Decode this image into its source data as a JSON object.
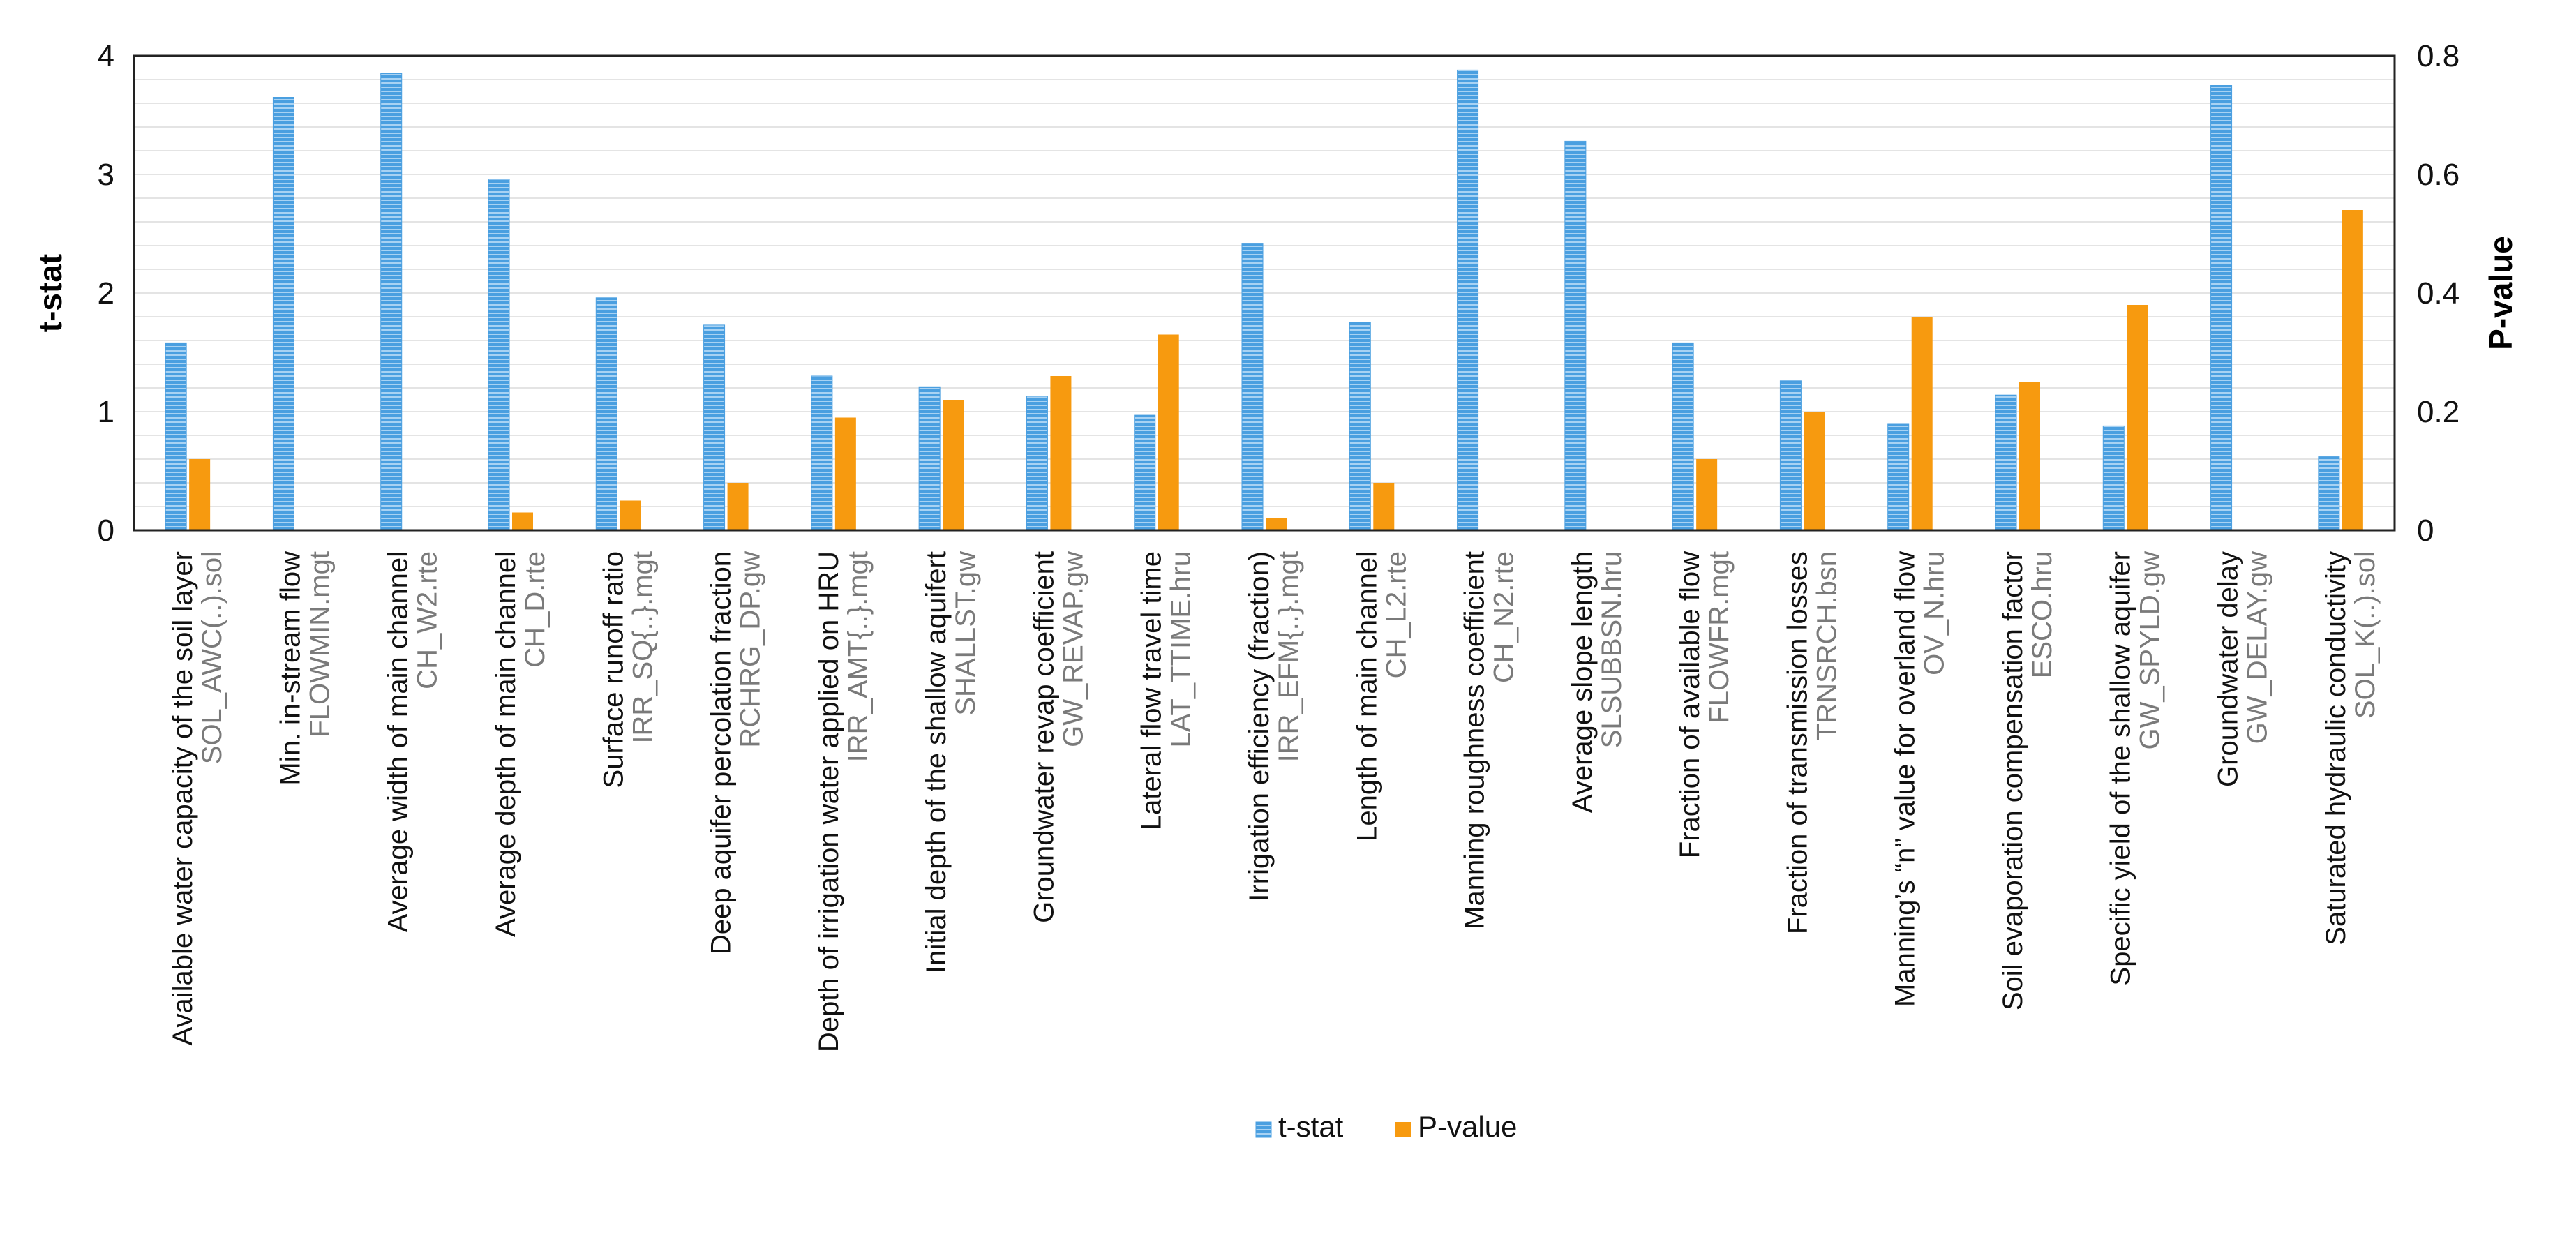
{
  "chart_data": {
    "type": "bar",
    "title": "",
    "xlabel": "",
    "ylabel": "t-stat",
    "y2label": "P-value",
    "ylim": [
      0,
      4
    ],
    "y2lim": [
      0,
      0.8
    ],
    "yticks": [
      "0",
      "1",
      "2",
      "3",
      "4"
    ],
    "y2ticks": [
      "0",
      "0.2",
      "0.4",
      "0.6",
      "0.8"
    ],
    "grid": true,
    "legend_position": "bottom-center",
    "categories": [
      {
        "name": "Available water capacity of the soil layer",
        "code": "SOL_AWC(..).sol"
      },
      {
        "name": "Min. in-stream flow",
        "code": "FLOWMIN.mgt"
      },
      {
        "name": "Average width of main channel",
        "code": "CH_W2.rte"
      },
      {
        "name": "Average depth of main channel",
        "code": "CH_D.rte"
      },
      {
        "name": "Surface runoff ratio",
        "code": "IRR_SQ{..}.mgt"
      },
      {
        "name": "Deep aquifer percolation fraction",
        "code": "RCHRG_DP.gw"
      },
      {
        "name": "Depth of irrigation water applied on HRU",
        "code": "IRR_AMT{..}.mgt"
      },
      {
        "name": "Initial depth of the shallow aquifert",
        "code": "SHALLST.gw"
      },
      {
        "name": "Groundwater revap coefficient",
        "code": "GW_REVAP.gw"
      },
      {
        "name": "Lateral flow travel time",
        "code": "LAT_TTIME.hru"
      },
      {
        "name": "Irrigation efficiency (fraction)",
        "code": "IRR_EFM{..}.mgt"
      },
      {
        "name": "Length of main channel",
        "code": "CH_L2.rte"
      },
      {
        "name": "Manning roughness coefficient",
        "code": "CH_N2.rte"
      },
      {
        "name": "Average slope length",
        "code": "SLSUBBSN.hru"
      },
      {
        "name": "Fraction of available flow",
        "code": "FLOWFR.mgt"
      },
      {
        "name": "Fraction of transmission losses",
        "code": "TRNSRCH.bsn"
      },
      {
        "name": "Manning’s “n” value for overland flow",
        "code": "OV_N.hru"
      },
      {
        "name": "Soil evaporation compensation factor",
        "code": "ESCO.hru"
      },
      {
        "name": "Specific yield of the shallow aquifer",
        "code": "GW_SPYLD.gw"
      },
      {
        "name": "Groundwater delay",
        "code": "GW_DELAY.gw"
      },
      {
        "name": "Saturated hydraulic conductivity",
        "code": "SOL_K(..).sol"
      }
    ],
    "series": [
      {
        "name": "t-stat",
        "axis": "left",
        "color": "#4a9fe0",
        "values": [
          1.58,
          3.65,
          3.85,
          2.96,
          1.96,
          1.73,
          1.3,
          1.21,
          1.13,
          0.97,
          2.42,
          1.75,
          3.88,
          3.28,
          1.58,
          1.26,
          0.9,
          1.14,
          0.88,
          3.75,
          0.62
        ]
      },
      {
        "name": "P-value",
        "axis": "right",
        "color": "#f79a0f",
        "values": [
          0.12,
          0.0,
          0.0,
          0.03,
          0.05,
          0.08,
          0.19,
          0.22,
          0.26,
          0.33,
          0.02,
          0.08,
          0.0,
          0.0,
          0.12,
          0.2,
          0.36,
          0.25,
          0.38,
          0.0,
          0.54
        ]
      }
    ]
  }
}
